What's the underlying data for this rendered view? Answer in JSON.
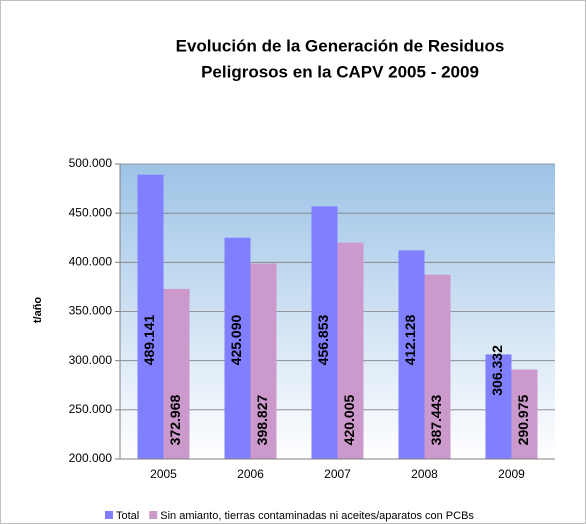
{
  "chart_data": {
    "type": "bar",
    "title": [
      "Evolución de la Generación de Residuos",
      "Peligrosos en la CAPV 2005 - 2009"
    ],
    "ylabel": "t/año",
    "categories": [
      "2005",
      "2006",
      "2007",
      "2008",
      "2009"
    ],
    "series": [
      {
        "name": "Total",
        "color": "#7f7fff",
        "values": [
          489141,
          425090,
          456853,
          412128,
          306332
        ],
        "value_labels": [
          "489.141",
          "425.090",
          "456.853",
          "412.128",
          "306.332"
        ]
      },
      {
        "name": "Sin amianto, tierras contaminadas ni aceites/aparatos con PCBs",
        "color": "#cc99cc",
        "values": [
          372968,
          398827,
          420005,
          387443,
          290975
        ],
        "value_labels": [
          "372.968",
          "398.827",
          "420.005",
          "387.443",
          "290.975"
        ]
      }
    ],
    "ylim": [
      200000,
      500000
    ],
    "yticks": [
      {
        "value": 200000,
        "label": "200.000"
      },
      {
        "value": 250000,
        "label": "250.000"
      },
      {
        "value": 300000,
        "label": "300.000"
      },
      {
        "value": 350000,
        "label": "350.000"
      },
      {
        "value": 400000,
        "label": "400.000"
      },
      {
        "value": 450000,
        "label": "450.000"
      },
      {
        "value": 500000,
        "label": "500.000"
      }
    ],
    "grid": true,
    "legend": "bottom"
  }
}
